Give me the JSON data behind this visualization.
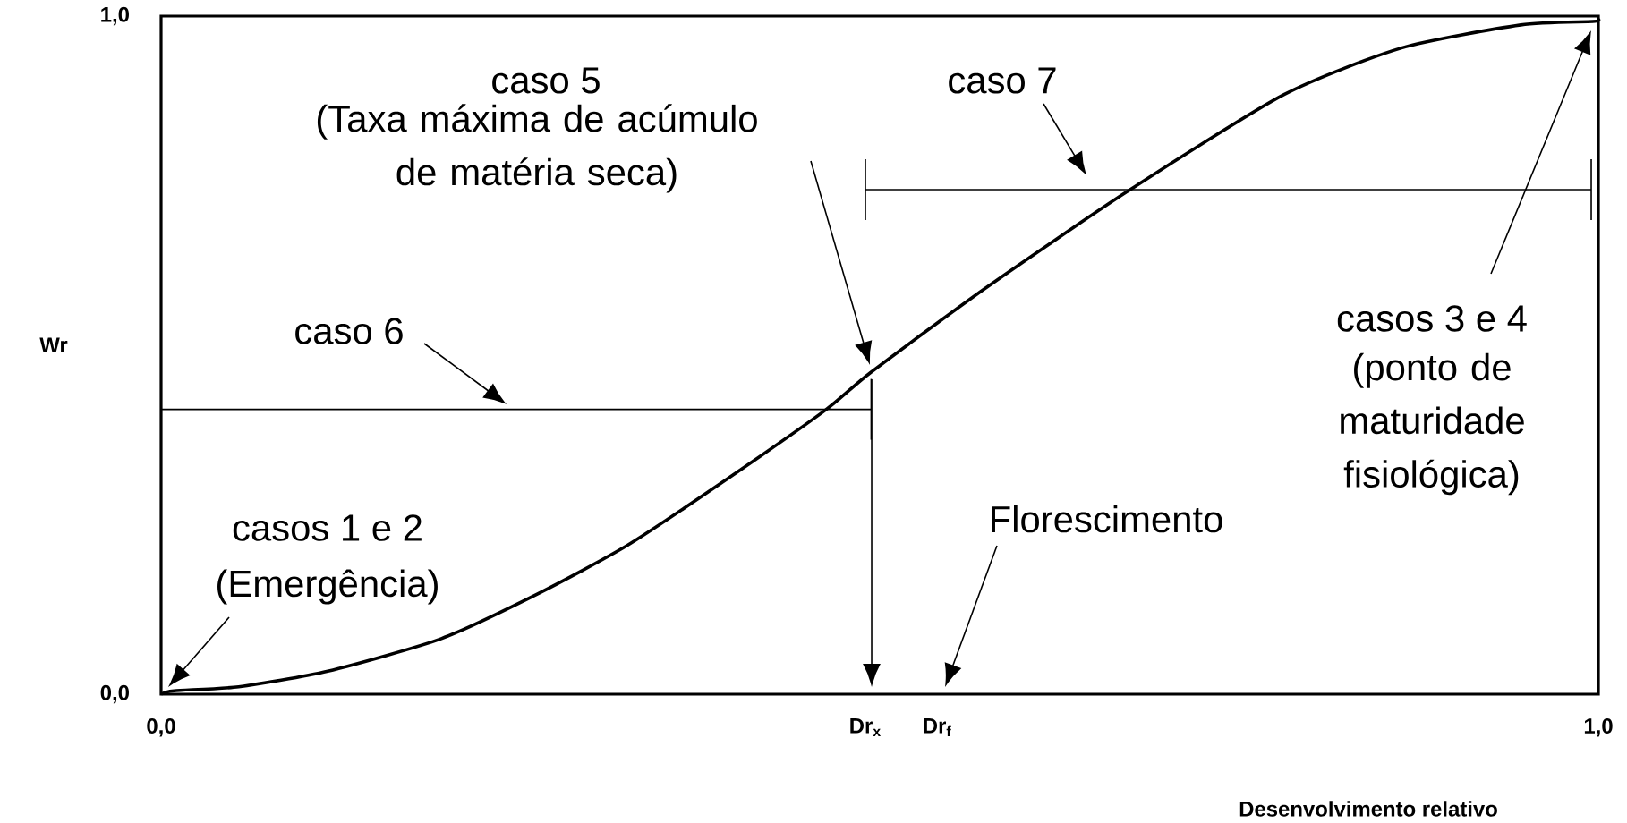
{
  "chart_data": {
    "type": "line",
    "xlabel": "Desenvolvimento relativo",
    "ylabel": "Wr",
    "x": [
      0,
      0.009,
      0.054,
      0.116,
      0.195,
      0.262,
      0.324,
      0.386,
      0.461,
      0.494,
      0.573,
      0.672,
      0.781,
      0.863,
      0.946,
      0.996,
      1.0
    ],
    "series": [
      {
        "color": "#000000",
        "values": [
          0,
          0.005,
          0.011,
          0.034,
          0.082,
          0.148,
          0.219,
          0.306,
          0.417,
          0.475,
          0.598,
          0.741,
          0.884,
          0.953,
          0.987,
          0.992,
          0.995
        ]
      },
      {
        "color": "#000000",
        "x": [
          0,
          0.494
        ],
        "values": [
          0.42,
          0.42
        ]
      },
      {
        "color": "#000000",
        "x": [
          0.49,
          0.995
        ],
        "values": [
          0.744,
          0.744
        ]
      }
    ],
    "xlim": [
      0,
      1
    ],
    "ylim": [
      0,
      1
    ],
    "xticks": [
      {
        "value": 0,
        "label": "0,0"
      },
      {
        "value": 0.49,
        "label": "Dr$_{x}$"
      },
      {
        "value": 0.54,
        "label": "Dr$_{f}$"
      },
      {
        "value": 1,
        "label": "1,0"
      }
    ],
    "yticks": [
      {
        "value": 0,
        "label": "0,0"
      },
      {
        "value": 1,
        "label": "1,0"
      }
    ],
    "annotations": [
      "caso 5",
      "(Taxa máxima de acúmulo de matéria seca)",
      "casos 3 e 4",
      "(ponto de maturidade fisiológica)",
      "casos 1 e 2",
      "(Emergência)",
      "Florescimento",
      "caso 6",
      "caso 7"
    ]
  }
}
